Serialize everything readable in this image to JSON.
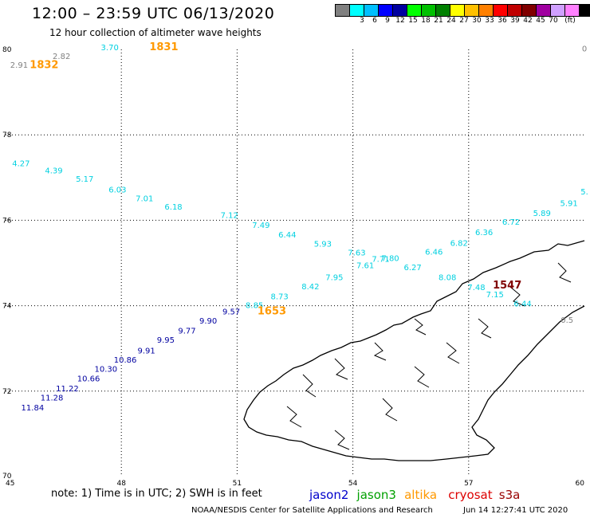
{
  "header": {
    "title": "12:00 – 23:59 UTC 06/13/2020",
    "subtitle": "12 hour collection of altimeter wave heights"
  },
  "legend": {
    "unit": "(ft)",
    "swatches": [
      {
        "color": "#808080",
        "label": ""
      },
      {
        "color": "#00ffff",
        "label": "3"
      },
      {
        "color": "#00bfff",
        "label": "6"
      },
      {
        "color": "#0000ff",
        "label": "9"
      },
      {
        "color": "#0000a0",
        "label": "12"
      },
      {
        "color": "#00ff00",
        "label": "15"
      },
      {
        "color": "#00c000",
        "label": "18"
      },
      {
        "color": "#008000",
        "label": "21"
      },
      {
        "color": "#ffff00",
        "label": "24"
      },
      {
        "color": "#ffc000",
        "label": "27"
      },
      {
        "color": "#ff8000",
        "label": "30"
      },
      {
        "color": "#ff0000",
        "label": "33"
      },
      {
        "color": "#c00000",
        "label": "36"
      },
      {
        "color": "#800000",
        "label": "39"
      },
      {
        "color": "#a000a0",
        "label": "42"
      },
      {
        "color": "#d0a0ff",
        "label": "45"
      },
      {
        "color": "#ff80ff",
        "label": "70"
      },
      {
        "color": "#000000",
        "label": ""
      }
    ]
  },
  "axes": {
    "lon_ticks": [
      "45",
      "48",
      "51",
      "54",
      "57",
      "60"
    ],
    "lat_ticks": [
      "80",
      "78",
      "76",
      "74",
      "72",
      "70"
    ]
  },
  "readings": [
    {
      "text": "2.91",
      "lon": 45.35,
      "lat": 79.57,
      "color": "#808080"
    },
    {
      "text": "2.82",
      "lon": 46.45,
      "lat": 79.78,
      "color": "#808080"
    },
    {
      "text": "3.70",
      "lon": 47.7,
      "lat": 79.98,
      "color": "#00d0e0"
    },
    {
      "text": "4.27",
      "lon": 45.4,
      "lat": 77.27,
      "color": "#00d0e0"
    },
    {
      "text": "4.39",
      "lon": 46.25,
      "lat": 77.1,
      "color": "#00d0e0"
    },
    {
      "text": "5.17",
      "lon": 47.05,
      "lat": 76.9,
      "color": "#00d0e0"
    },
    {
      "text": "6.03",
      "lon": 47.9,
      "lat": 76.65,
      "color": "#00d0e0"
    },
    {
      "text": "7.01",
      "lon": 48.6,
      "lat": 76.45,
      "color": "#00d0e0"
    },
    {
      "text": "6.18",
      "lon": 49.35,
      "lat": 76.25,
      "color": "#00d0e0"
    },
    {
      "text": "7.12",
      "lon": 50.8,
      "lat": 76.05,
      "color": "#00d0e0"
    },
    {
      "text": "7.49",
      "lon": 51.62,
      "lat": 75.82,
      "color": "#00d0e0"
    },
    {
      "text": "6.44",
      "lon": 52.3,
      "lat": 75.6,
      "color": "#00d0e0"
    },
    {
      "text": "5.93",
      "lon": 53.22,
      "lat": 75.38,
      "color": "#00d0e0"
    },
    {
      "text": "7.63",
      "lon": 54.1,
      "lat": 75.18,
      "color": "#00d0e0"
    },
    {
      "text": "7.61",
      "lon": 54.32,
      "lat": 74.88,
      "color": "#00d0e0"
    },
    {
      "text": "7.71",
      "lon": 54.72,
      "lat": 75.03,
      "color": "#00d0e0"
    },
    {
      "text": "7.80",
      "lon": 54.97,
      "lat": 75.05,
      "color": "#00d0e0"
    },
    {
      "text": "6.46",
      "lon": 56.1,
      "lat": 75.2,
      "color": "#00d0e0"
    },
    {
      "text": "6.27",
      "lon": 55.55,
      "lat": 74.83,
      "color": "#00d0e0"
    },
    {
      "text": "6.82",
      "lon": 56.75,
      "lat": 75.4,
      "color": "#00d0e0"
    },
    {
      "text": "6.36",
      "lon": 57.4,
      "lat": 75.65,
      "color": "#00d0e0"
    },
    {
      "text": "6.72",
      "lon": 58.1,
      "lat": 75.9,
      "color": "#00d0e0"
    },
    {
      "text": "5.89",
      "lon": 58.9,
      "lat": 76.1,
      "color": "#00d0e0"
    },
    {
      "text": "5.91",
      "lon": 59.6,
      "lat": 76.33,
      "color": "#00d0e0"
    },
    {
      "text": "8.08",
      "lon": 56.45,
      "lat": 74.6,
      "color": "#00d0e0"
    },
    {
      "text": "7.48",
      "lon": 57.2,
      "lat": 74.37,
      "color": "#00d0e0"
    },
    {
      "text": "7.15",
      "lon": 57.68,
      "lat": 74.2,
      "color": "#00d0e0"
    },
    {
      "text": "6.44",
      "lon": 58.4,
      "lat": 73.98,
      "color": "#00d0e0"
    },
    {
      "text": "7.95",
      "lon": 53.52,
      "lat": 74.6,
      "color": "#00d0e0"
    },
    {
      "text": "8.42",
      "lon": 52.9,
      "lat": 74.38,
      "color": "#00d0e0"
    },
    {
      "text": "8.73",
      "lon": 52.1,
      "lat": 74.15,
      "color": "#00d0e0"
    },
    {
      "text": "8.85",
      "lon": 51.45,
      "lat": 73.95,
      "color": "#00d0e0"
    },
    {
      "text": "9.57",
      "lon": 50.85,
      "lat": 73.8,
      "color": "#0000a0"
    },
    {
      "text": "9.90",
      "lon": 50.25,
      "lat": 73.58,
      "color": "#0000a0"
    },
    {
      "text": "9.77",
      "lon": 49.7,
      "lat": 73.35,
      "color": "#0000a0"
    },
    {
      "text": "9.95",
      "lon": 49.15,
      "lat": 73.13,
      "color": "#0000a0"
    },
    {
      "text": "9.91",
      "lon": 48.65,
      "lat": 72.88,
      "color": "#0000a0"
    },
    {
      "text": "10.86",
      "lon": 48.1,
      "lat": 72.67,
      "color": "#0000a0"
    },
    {
      "text": "10.30",
      "lon": 47.6,
      "lat": 72.45,
      "color": "#0000a0"
    },
    {
      "text": "10.66",
      "lon": 47.15,
      "lat": 72.23,
      "color": "#0000a0"
    },
    {
      "text": "11.22",
      "lon": 46.6,
      "lat": 72.0,
      "color": "#0000a0"
    },
    {
      "text": "11.28",
      "lon": 46.2,
      "lat": 71.78,
      "color": "#0000a0"
    },
    {
      "text": "11.84",
      "lon": 45.7,
      "lat": 71.55,
      "color": "#0000a0"
    },
    {
      "text": "0.5",
      "lon": 59.55,
      "lat": 73.6,
      "color": "#808080"
    },
    {
      "text": "0",
      "lon": 60.0,
      "lat": 79.95,
      "color": "#808080"
    },
    {
      "text": "5.",
      "lon": 60.0,
      "lat": 76.6,
      "color": "#00d0e0"
    }
  ],
  "pass_times": [
    {
      "text": "1831",
      "lon": 49.1,
      "lat": 79.98,
      "color": "#ff9900"
    },
    {
      "text": "1832",
      "lon": 46.0,
      "lat": 79.56,
      "color": "#ff9900"
    },
    {
      "text": "1653",
      "lon": 51.9,
      "lat": 73.8,
      "color": "#ff9900"
    },
    {
      "text": "1547",
      "lon": 58.0,
      "lat": 74.4,
      "color": "#800000"
    }
  ],
  "notes": {
    "note": "note:  1) Time is in UTC;  2) SWH is in feet",
    "satellites": [
      {
        "name": "jason2",
        "color": "#0000cc"
      },
      {
        "name": "jason3",
        "color": "#00a000"
      },
      {
        "name": "altika",
        "color": "#ff9900"
      },
      {
        "name": "cryosat",
        "color": "#dd0000"
      },
      {
        "name": "s3a",
        "color": "#990000"
      }
    ]
  },
  "footer": {
    "credit": "NOAA/NESDIS Center for Satellite Applications and Research",
    "timestamp": "Jun 14 12:27:41 UTC 2020"
  }
}
